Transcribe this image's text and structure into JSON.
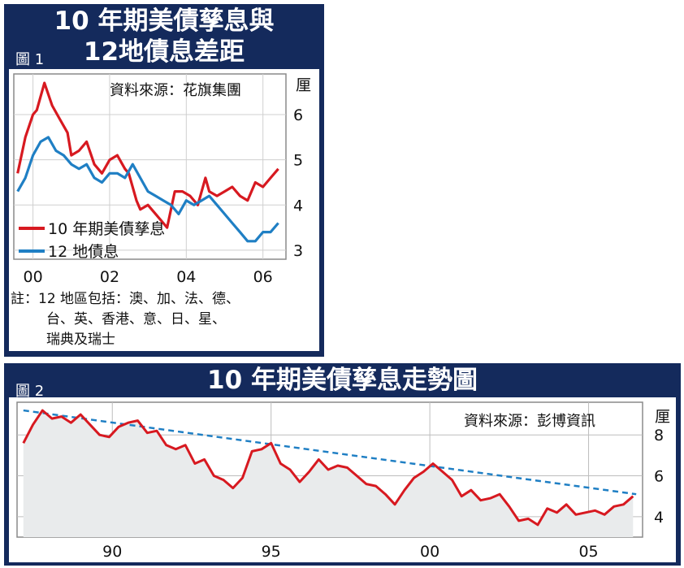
{
  "figure1": {
    "fig_label": "圖 1",
    "title_line1": "10 年期美債孳息與",
    "title_line2": "12地債息差距",
    "source": "資料來源：花旗集團",
    "note_line1": "註：12 地區包括：澳、加、法、德、",
    "note_line2": "台、英、香港、意、日、星、",
    "note_line3": "瑞典及瑞士",
    "colors": {
      "us": "#d71920",
      "g12": "#1f7fc4",
      "bg": "#142a5c"
    }
  },
  "figure2": {
    "fig_label": "圖 2",
    "title": "10 年期美債孳息走勢圖",
    "source": "資料來源：彭博資訊",
    "colors": {
      "us": "#d71920",
      "trend": "#1f7fc4",
      "fill": "#e9ebec"
    }
  },
  "chart_data": [
    {
      "type": "line",
      "ylabel": "厘",
      "ylim": [
        2.8,
        6.9
      ],
      "xlim": [
        1999.5,
        2006.6
      ],
      "y_ticks": [
        "6",
        "5",
        "4",
        "3"
      ],
      "x_ticks": [
        "00",
        "02",
        "04",
        "06"
      ],
      "legend": "bottom-left",
      "grid": true,
      "series": [
        {
          "name": "10 年期美債孳息",
          "x": [
            1999.6,
            1999.8,
            2000.0,
            2000.1,
            2000.3,
            2000.5,
            2000.7,
            2000.9,
            2001.0,
            2001.2,
            2001.4,
            2001.6,
            2001.8,
            2002.0,
            2002.2,
            2002.4,
            2002.5,
            2002.7,
            2002.8,
            2003.0,
            2003.2,
            2003.4,
            2003.5,
            2003.7,
            2003.9,
            2004.1,
            2004.3,
            2004.5,
            2004.6,
            2004.8,
            2005.0,
            2005.2,
            2005.4,
            2005.6,
            2005.8,
            2006.0,
            2006.2,
            2006.4
          ],
          "y": [
            4.7,
            5.5,
            6.0,
            6.1,
            6.7,
            6.2,
            5.9,
            5.6,
            5.1,
            5.2,
            5.4,
            4.9,
            4.7,
            5.0,
            5.1,
            4.8,
            4.7,
            4.1,
            3.9,
            4.0,
            3.8,
            3.6,
            3.5,
            4.3,
            4.3,
            4.2,
            4.0,
            4.6,
            4.3,
            4.2,
            4.3,
            4.4,
            4.2,
            4.1,
            4.5,
            4.4,
            4.6,
            4.8
          ]
        },
        {
          "name": "12 地債息",
          "x": [
            1999.6,
            1999.8,
            2000.0,
            2000.2,
            2000.4,
            2000.6,
            2000.8,
            2001.0,
            2001.2,
            2001.4,
            2001.6,
            2001.8,
            2002.0,
            2002.2,
            2002.4,
            2002.6,
            2002.8,
            2003.0,
            2003.2,
            2003.4,
            2003.6,
            2003.8,
            2004.0,
            2004.2,
            2004.4,
            2004.6,
            2004.8,
            2005.0,
            2005.2,
            2005.4,
            2005.6,
            2005.8,
            2006.0,
            2006.2,
            2006.4
          ],
          "y": [
            4.3,
            4.6,
            5.1,
            5.4,
            5.5,
            5.2,
            5.1,
            4.9,
            4.8,
            4.9,
            4.6,
            4.5,
            4.7,
            4.7,
            4.6,
            4.9,
            4.6,
            4.3,
            4.2,
            4.1,
            4.0,
            3.8,
            4.1,
            4.0,
            4.1,
            4.2,
            4.0,
            3.8,
            3.6,
            3.4,
            3.2,
            3.2,
            3.4,
            3.4,
            3.6
          ]
        }
      ]
    },
    {
      "type": "area",
      "ylabel": "厘",
      "ylim": [
        3.0,
        9.6
      ],
      "xlim": [
        1987.0,
        2006.7
      ],
      "y_ticks": [
        "8",
        "6",
        "4"
      ],
      "x_ticks": [
        "90",
        "95",
        "00",
        "05"
      ],
      "grid": true,
      "trend_line": {
        "x": [
          1987.2,
          2006.5
        ],
        "y": [
          9.2,
          5.1
        ]
      },
      "series": [
        {
          "name": "10 年期美債孳息",
          "x": [
            1987.2,
            1987.5,
            1987.8,
            1988.1,
            1988.4,
            1988.7,
            1989.0,
            1989.3,
            1989.6,
            1989.9,
            1990.2,
            1990.5,
            1990.8,
            1991.1,
            1991.4,
            1991.7,
            1992.0,
            1992.3,
            1992.6,
            1992.9,
            1993.2,
            1993.5,
            1993.8,
            1994.1,
            1994.4,
            1994.7,
            1995.0,
            1995.3,
            1995.6,
            1995.9,
            1996.2,
            1996.5,
            1996.8,
            1997.1,
            1997.4,
            1997.7,
            1998.0,
            1998.3,
            1998.6,
            1998.9,
            1999.2,
            1999.5,
            1999.8,
            2000.1,
            2000.4,
            2000.7,
            2001.0,
            2001.3,
            2001.6,
            2001.9,
            2002.2,
            2002.5,
            2002.8,
            2003.1,
            2003.4,
            2003.7,
            2004.0,
            2004.3,
            2004.6,
            2004.9,
            2005.2,
            2005.5,
            2005.8,
            2006.1,
            2006.4
          ],
          "y": [
            7.6,
            8.5,
            9.2,
            8.8,
            8.9,
            8.6,
            9.0,
            8.5,
            8.0,
            7.9,
            8.4,
            8.6,
            8.7,
            8.1,
            8.2,
            7.5,
            7.3,
            7.5,
            6.6,
            6.8,
            6.0,
            5.8,
            5.4,
            5.9,
            7.2,
            7.3,
            7.6,
            6.6,
            6.3,
            5.7,
            6.2,
            6.8,
            6.3,
            6.5,
            6.4,
            6.0,
            5.6,
            5.5,
            5.1,
            4.6,
            5.3,
            5.9,
            6.2,
            6.6,
            6.2,
            5.8,
            5.0,
            5.3,
            4.8,
            4.9,
            5.1,
            4.5,
            3.8,
            3.9,
            3.6,
            4.4,
            4.2,
            4.6,
            4.1,
            4.2,
            4.3,
            4.1,
            4.5,
            4.6,
            5.0
          ]
        }
      ]
    }
  ]
}
